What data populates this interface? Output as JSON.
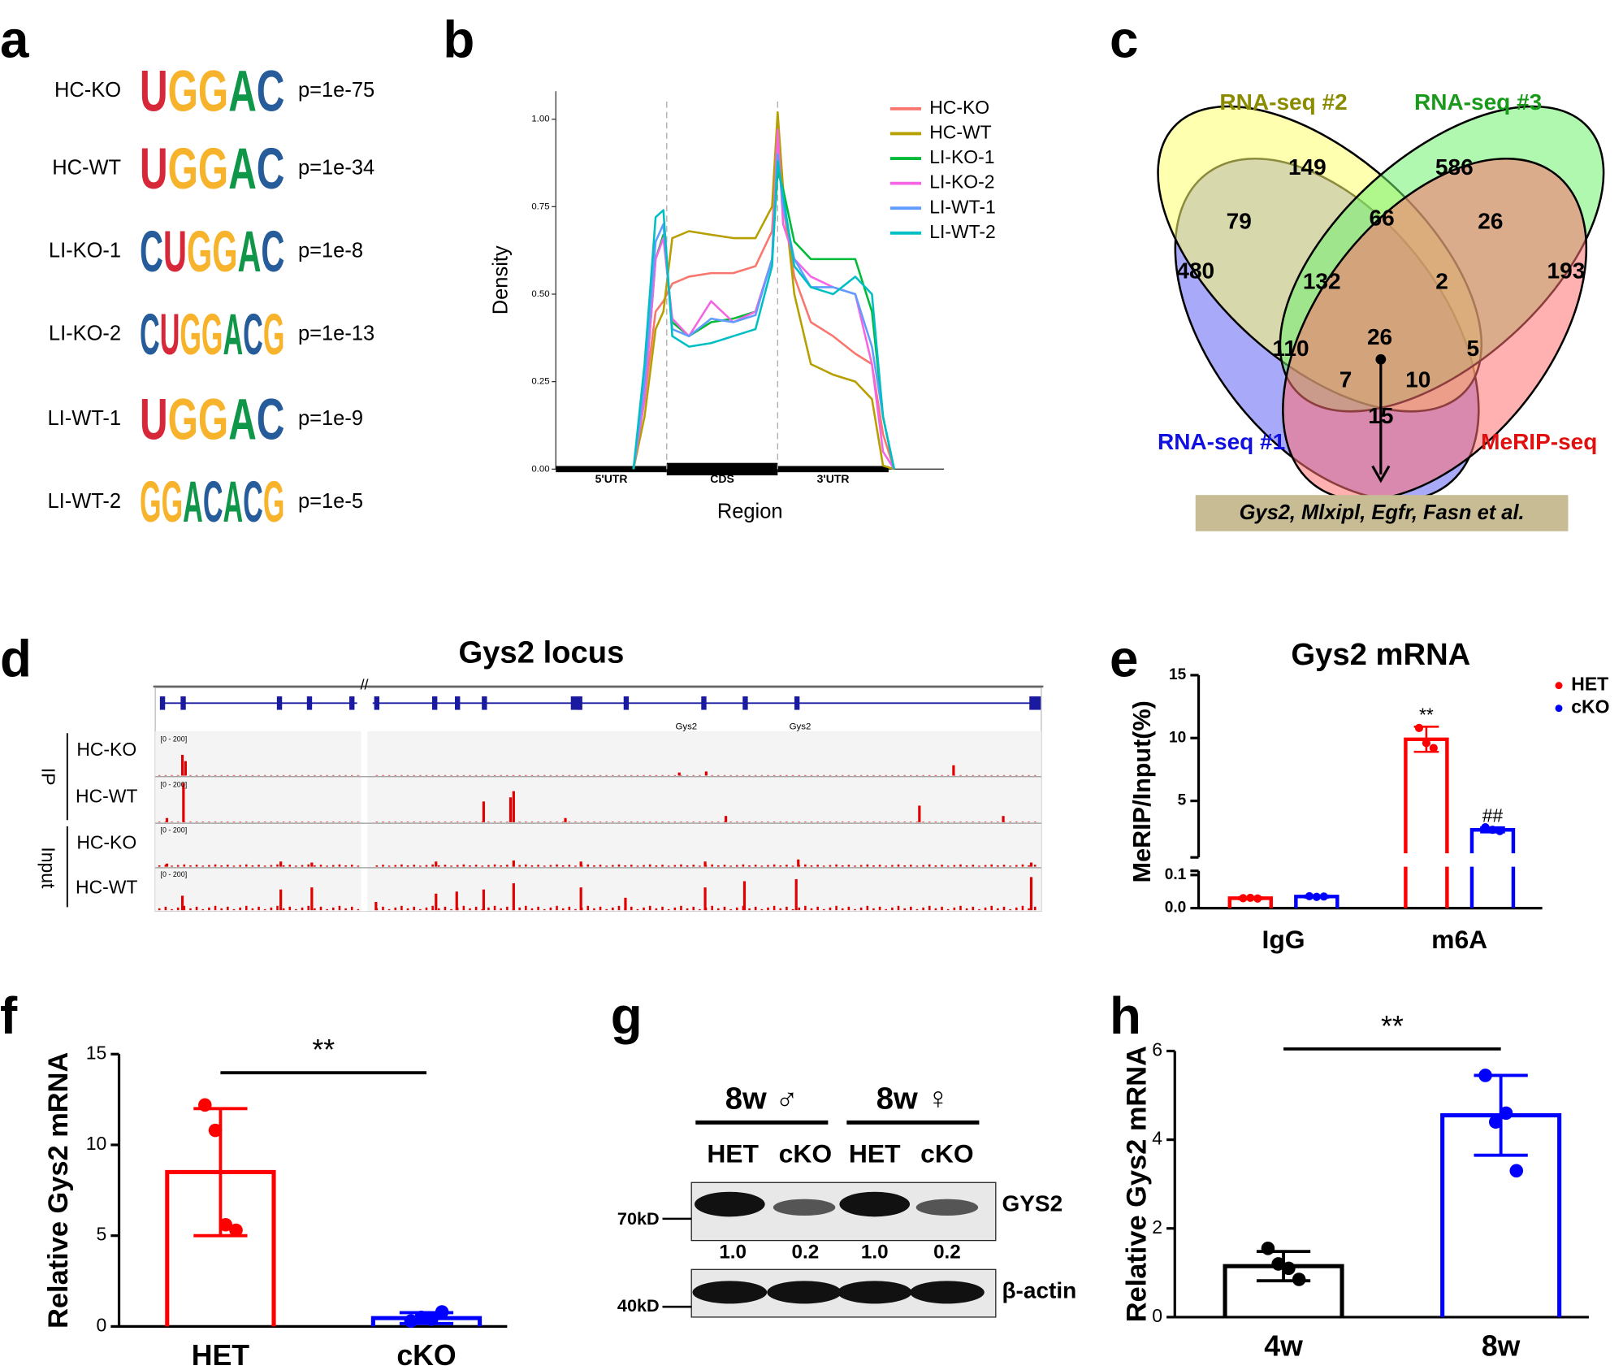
{
  "panel_labels": [
    "a",
    "b",
    "c",
    "d",
    "e",
    "f",
    "g",
    "h"
  ],
  "motifs": [
    {
      "sample": "HC-KO",
      "motif": "UGGAC",
      "p": "p=1e-75"
    },
    {
      "sample": "HC-WT",
      "motif": "UGGAC",
      "p": "p=1e-34"
    },
    {
      "sample": "LI-KO-1",
      "motif": "CUGGAC",
      "p": "p=1e-8"
    },
    {
      "sample": "LI-KO-2",
      "motif": "CUGGACG",
      "p": "p=1e-13"
    },
    {
      "sample": "LI-WT-1",
      "motif": "UGGAC",
      "p": "p=1e-9"
    },
    {
      "sample": "LI-WT-2",
      "motif": "GGACACG",
      "p": "p=1e-5"
    }
  ],
  "chart_data": [
    {
      "type": "line",
      "xlabel": "Region",
      "ylabel": "Density",
      "regions": [
        "5'UTR",
        "CDS",
        "3'UTR"
      ],
      "x": [
        0.7,
        0.8,
        0.9,
        0.97,
        1.05,
        1.2,
        1.4,
        1.6,
        1.8,
        1.95,
        2.0,
        2.05,
        2.15,
        2.3,
        2.5,
        2.7,
        2.85,
        2.95,
        3.05
      ],
      "xlim": [
        0,
        3.5
      ],
      "ylim": [
        0,
        1.08
      ],
      "yticks": [
        {
          "value": 0,
          "label": "0.00"
        },
        0.25,
        {
          "value": 0.5,
          "label": "0.50"
        },
        0.75,
        {
          "value": 1,
          "label": "1.00"
        }
      ],
      "series": [
        {
          "name": "HC-KO",
          "color": "#f8766d",
          "values": [
            0,
            0.2,
            0.45,
            0.48,
            0.53,
            0.55,
            0.56,
            0.56,
            0.58,
            0.68,
            0.95,
            0.75,
            0.55,
            0.42,
            0.38,
            0.33,
            0.3,
            0.1,
            0
          ]
        },
        {
          "name": "HC-WT",
          "color": "#b79f00",
          "values": [
            0,
            0.15,
            0.4,
            0.45,
            0.66,
            0.68,
            0.67,
            0.66,
            0.66,
            0.75,
            1.02,
            0.8,
            0.5,
            0.3,
            0.27,
            0.25,
            0.2,
            0.01,
            0
          ]
        },
        {
          "name": "LI-KO-1",
          "color": "#00ba38",
          "values": [
            0,
            0.2,
            0.6,
            0.67,
            0.42,
            0.38,
            0.42,
            0.43,
            0.45,
            0.6,
            0.85,
            0.8,
            0.65,
            0.6,
            0.6,
            0.6,
            0.45,
            0.15,
            0
          ]
        },
        {
          "name": "LI-KO-2",
          "color": "#f564e3",
          "values": [
            0,
            0.2,
            0.6,
            0.66,
            0.43,
            0.38,
            0.48,
            0.42,
            0.45,
            0.6,
            0.97,
            0.7,
            0.6,
            0.55,
            0.52,
            0.5,
            0.3,
            0.05,
            0
          ]
        },
        {
          "name": "LI-WT-1",
          "color": "#619cff",
          "values": [
            0,
            0.25,
            0.65,
            0.7,
            0.4,
            0.38,
            0.43,
            0.42,
            0.44,
            0.6,
            0.9,
            0.75,
            0.6,
            0.52,
            0.52,
            0.5,
            0.35,
            0.15,
            0
          ]
        },
        {
          "name": "LI-WT-2",
          "color": "#00bfc4",
          "values": [
            0,
            0.3,
            0.72,
            0.74,
            0.38,
            0.35,
            0.36,
            0.38,
            0.4,
            0.58,
            0.88,
            0.78,
            0.58,
            0.52,
            0.5,
            0.55,
            0.5,
            0.15,
            0
          ]
        }
      ]
    },
    {
      "type": "bar",
      "title": "Gys2 mRNA",
      "ylabel": "MeRIP/Input(%)",
      "categories": [
        "IgG",
        "m6A"
      ],
      "ylim": [
        0,
        15
      ],
      "ybreak": [
        0.1,
        1
      ],
      "yticks": [
        {
          "value": 0,
          "label": "0.0"
        },
        0.1,
        5,
        10,
        15
      ],
      "series": [
        {
          "name": "HET",
          "color": "#ff0000",
          "values": [
            0.03,
            9.9
          ],
          "errors": [
            0.003,
            1.0
          ],
          "points": [
            [
              0.03,
              0.031,
              0.029
            ],
            [
              10.8,
              9.6,
              9.2
            ]
          ],
          "annotation": "**"
        },
        {
          "name": "cKO",
          "color": "#0000ff",
          "values": [
            0.035,
            2.7
          ],
          "errors": [
            0.003,
            0.2
          ],
          "points": [
            [
              0.036,
              0.034,
              0.035
            ],
            [
              2.9,
              2.7,
              2.6
            ]
          ],
          "annotation": "##"
        }
      ]
    },
    {
      "type": "bar",
      "ylabel": "Relative Gys2 mRNA",
      "categories": [
        "HET",
        "cKO"
      ],
      "values": [
        8.5,
        0.46
      ],
      "errors": [
        3.5,
        0.3
      ],
      "colors": [
        "#ff0000",
        "#0000ff"
      ],
      "points": [
        [
          12.2,
          10.8,
          5.6,
          5.3
        ],
        [
          0.3,
          0.5,
          0.4,
          0.8
        ]
      ],
      "ylim": [
        0,
        15
      ],
      "yticks": [
        0,
        5,
        10,
        15
      ],
      "annotation": "**"
    },
    {
      "type": "bar",
      "ylabel": "Relative Gys2 mRNA",
      "categories": [
        "4w",
        "8w"
      ],
      "values": [
        1.15,
        4.55
      ],
      "errors": [
        0.33,
        0.9
      ],
      "colors": [
        "#000000",
        "#0000ff"
      ],
      "points": [
        [
          1.55,
          1.2,
          1.1,
          0.85
        ],
        [
          5.45,
          4.4,
          4.6,
          3.3
        ]
      ],
      "ylim": [
        0,
        6
      ],
      "yticks": [
        0,
        2,
        4,
        6
      ],
      "annotation": "**"
    }
  ],
  "venn": {
    "sets": [
      "RNA-seq #1",
      "RNA-seq #2",
      "RNA-seq #3",
      "MeRIP-seq"
    ],
    "counts": [
      149,
      586,
      79,
      66,
      26,
      480,
      132,
      2,
      193,
      110,
      26,
      5,
      7,
      10,
      15
    ],
    "genes": "Gys2, Mlxipl, Egfr, Fasn et al."
  },
  "locus": {
    "title": "Gys2 locus",
    "groups": [
      "IP",
      "Input"
    ],
    "tracks": [
      "HC-KO",
      "HC-WT",
      "HC-KO",
      "HC-WT"
    ],
    "range": "[0 - 200]",
    "genes": [
      "Gys2",
      "Gys2"
    ]
  },
  "blot": {
    "groups": [
      "8w ♂",
      "8w ♀"
    ],
    "lanes": [
      "HET",
      "cKO",
      "HET",
      "cKO"
    ],
    "markers": [
      "70kD",
      "40kD"
    ],
    "proteins": [
      "GYS2",
      "β-actin"
    ],
    "quant": [
      "1.0",
      "0.2",
      "1.0",
      "0.2"
    ]
  }
}
